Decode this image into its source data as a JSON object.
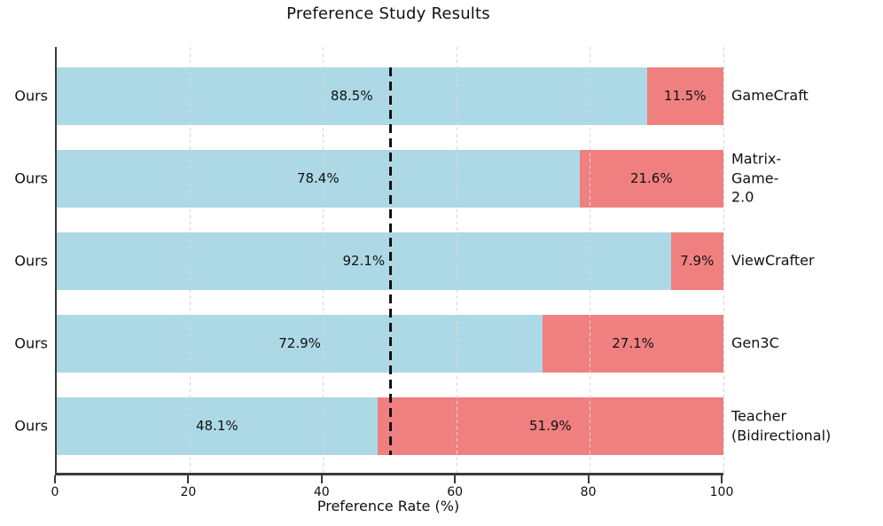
{
  "title": "Preference Study Results",
  "chart_data": {
    "type": "bar",
    "subtype": "horizontal-stacked",
    "title": "Preference Study Results",
    "xlabel": "Preference Rate (%)",
    "xlim": [
      0,
      100
    ],
    "xticks": [
      0,
      20,
      40,
      60,
      80,
      100
    ],
    "xtick_labels": [
      "0",
      "20",
      "40",
      "60",
      "80",
      "100"
    ],
    "grid": {
      "visible": true,
      "axis": "x",
      "style": "dashed",
      "color": "#d8d8d8",
      "at": [
        20,
        40,
        60,
        80,
        100
      ]
    },
    "reference_line": {
      "x": 50,
      "style": "dashed",
      "color": "#111111"
    },
    "legend_position": "none",
    "colors": {
      "ours": "#ADD8E6",
      "baseline": "#F08080"
    },
    "left_series_name": "Ours",
    "rows": [
      {
        "left_label": "Ours",
        "ours_pct": 88.5,
        "ours_text": "88.5%",
        "baseline_pct": 11.5,
        "baseline_text": "11.5%",
        "baseline_label": "GameCraft"
      },
      {
        "left_label": "Ours",
        "ours_pct": 78.4,
        "ours_text": "78.4%",
        "baseline_pct": 21.6,
        "baseline_text": "21.6%",
        "baseline_label": "Matrix-Game-2.0"
      },
      {
        "left_label": "Ours",
        "ours_pct": 92.1,
        "ours_text": "92.1%",
        "baseline_pct": 7.9,
        "baseline_text": "7.9%",
        "baseline_label": "ViewCrafter"
      },
      {
        "left_label": "Ours",
        "ours_pct": 72.9,
        "ours_text": "72.9%",
        "baseline_pct": 27.1,
        "baseline_text": "27.1%",
        "baseline_label": "Gen3C"
      },
      {
        "left_label": "Ours",
        "ours_pct": 48.1,
        "ours_text": "48.1%",
        "baseline_pct": 51.9,
        "baseline_text": "51.9%",
        "baseline_label": "Teacher\n (Bidirectional)"
      }
    ]
  }
}
